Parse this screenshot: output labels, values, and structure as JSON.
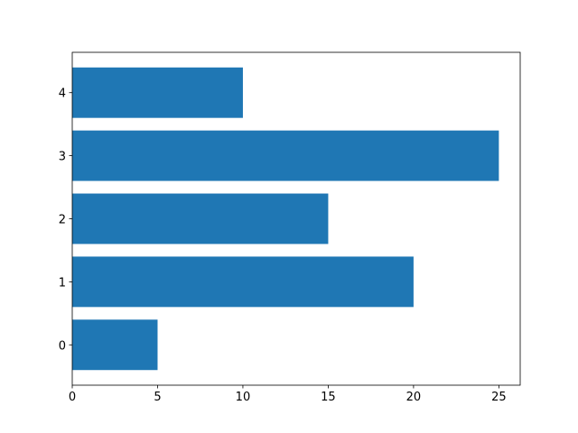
{
  "chart_data": {
    "type": "barh",
    "y": [
      0,
      1,
      2,
      3,
      4
    ],
    "values": [
      5,
      20,
      15,
      25,
      10
    ],
    "color": "#1f77b4",
    "xlim": [
      0,
      26.25
    ],
    "xticks": [
      0,
      5,
      10,
      15,
      20,
      25
    ],
    "ylim": [
      -0.64,
      4.64
    ],
    "yticks": [
      0,
      1,
      2,
      3,
      4
    ],
    "grid": false
  }
}
